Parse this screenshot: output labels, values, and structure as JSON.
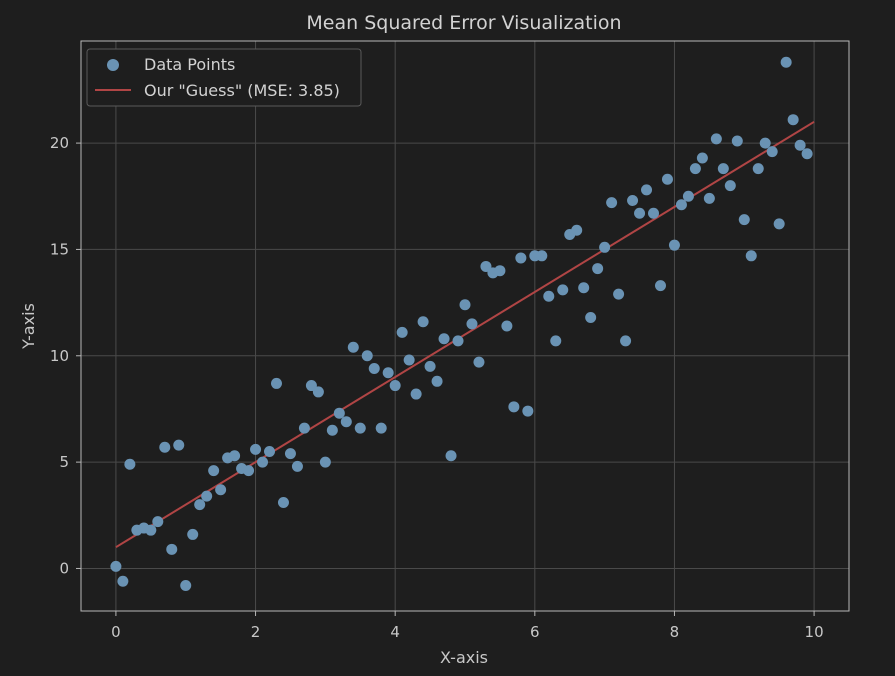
{
  "chart_data": {
    "type": "scatter",
    "title": "Mean Squared Error Visualization",
    "xlabel": "X-axis",
    "ylabel": "Y-axis",
    "xlim": [
      -0.5,
      10.5
    ],
    "ylim": [
      -2,
      24.8
    ],
    "xticks": [
      0,
      2,
      4,
      6,
      8,
      10
    ],
    "yticks": [
      0,
      5,
      10,
      15,
      20
    ],
    "grid": true,
    "legend_position": "top-left",
    "colors": {
      "background": "#1e1e1e",
      "points": "#6a93b4",
      "line": "#b04545",
      "grid": "#4a4a4a",
      "frame": "#b8b8b8"
    },
    "series": [
      {
        "name": "Data Points",
        "kind": "scatter",
        "points": [
          [
            0.0,
            0.1
          ],
          [
            0.1,
            -0.6
          ],
          [
            0.2,
            4.9
          ],
          [
            0.3,
            1.8
          ],
          [
            0.4,
            1.9
          ],
          [
            0.5,
            1.8
          ],
          [
            0.6,
            2.2
          ],
          [
            0.7,
            5.7
          ],
          [
            0.8,
            0.9
          ],
          [
            0.9,
            5.8
          ],
          [
            1.0,
            -0.8
          ],
          [
            1.1,
            1.6
          ],
          [
            1.2,
            3.0
          ],
          [
            1.3,
            3.4
          ],
          [
            1.4,
            4.6
          ],
          [
            1.5,
            3.7
          ],
          [
            1.6,
            5.2
          ],
          [
            1.7,
            5.3
          ],
          [
            1.8,
            4.7
          ],
          [
            1.9,
            4.6
          ],
          [
            2.0,
            5.6
          ],
          [
            2.1,
            5.0
          ],
          [
            2.2,
            5.5
          ],
          [
            2.3,
            8.7
          ],
          [
            2.4,
            3.1
          ],
          [
            2.5,
            5.4
          ],
          [
            2.6,
            4.8
          ],
          [
            2.7,
            6.6
          ],
          [
            2.8,
            8.6
          ],
          [
            2.9,
            8.3
          ],
          [
            3.0,
            5.0
          ],
          [
            3.1,
            6.5
          ],
          [
            3.2,
            7.3
          ],
          [
            3.3,
            6.9
          ],
          [
            3.4,
            10.4
          ],
          [
            3.5,
            6.6
          ],
          [
            3.6,
            10.0
          ],
          [
            3.7,
            9.4
          ],
          [
            3.8,
            6.6
          ],
          [
            3.9,
            9.2
          ],
          [
            4.0,
            8.6
          ],
          [
            4.1,
            11.1
          ],
          [
            4.2,
            9.8
          ],
          [
            4.3,
            8.2
          ],
          [
            4.4,
            11.6
          ],
          [
            4.5,
            9.5
          ],
          [
            4.6,
            8.8
          ],
          [
            4.7,
            10.8
          ],
          [
            4.8,
            5.3
          ],
          [
            4.9,
            10.7
          ],
          [
            5.0,
            12.4
          ],
          [
            5.1,
            11.5
          ],
          [
            5.2,
            9.7
          ],
          [
            5.3,
            14.2
          ],
          [
            5.4,
            13.9
          ],
          [
            5.5,
            14.0
          ],
          [
            5.6,
            11.4
          ],
          [
            5.7,
            7.6
          ],
          [
            5.8,
            14.6
          ],
          [
            5.9,
            7.4
          ],
          [
            6.0,
            14.7
          ],
          [
            6.1,
            14.7
          ],
          [
            6.2,
            12.8
          ],
          [
            6.3,
            10.7
          ],
          [
            6.4,
            13.1
          ],
          [
            6.5,
            15.7
          ],
          [
            6.6,
            15.9
          ],
          [
            6.7,
            13.2
          ],
          [
            6.8,
            11.8
          ],
          [
            6.9,
            14.1
          ],
          [
            7.0,
            15.1
          ],
          [
            7.1,
            17.2
          ],
          [
            7.2,
            12.9
          ],
          [
            7.3,
            10.7
          ],
          [
            7.4,
            17.3
          ],
          [
            7.5,
            16.7
          ],
          [
            7.6,
            17.8
          ],
          [
            7.7,
            16.7
          ],
          [
            7.8,
            13.3
          ],
          [
            7.9,
            18.3
          ],
          [
            8.0,
            15.2
          ],
          [
            8.1,
            17.1
          ],
          [
            8.2,
            17.5
          ],
          [
            8.3,
            18.8
          ],
          [
            8.4,
            19.3
          ],
          [
            8.5,
            17.4
          ],
          [
            8.6,
            20.2
          ],
          [
            8.7,
            18.8
          ],
          [
            8.8,
            18.0
          ],
          [
            8.9,
            20.1
          ],
          [
            9.0,
            16.4
          ],
          [
            9.1,
            14.7
          ],
          [
            9.2,
            18.8
          ],
          [
            9.3,
            20.0
          ],
          [
            9.4,
            19.6
          ],
          [
            9.5,
            16.2
          ],
          [
            9.6,
            23.8
          ],
          [
            9.7,
            21.1
          ],
          [
            9.8,
            19.9
          ],
          [
            9.9,
            19.5
          ]
        ]
      },
      {
        "name": "Our \"Guess\" (MSE: 3.85)",
        "kind": "line",
        "points": [
          [
            0,
            1.0
          ],
          [
            10,
            21.0
          ]
        ]
      }
    ]
  }
}
